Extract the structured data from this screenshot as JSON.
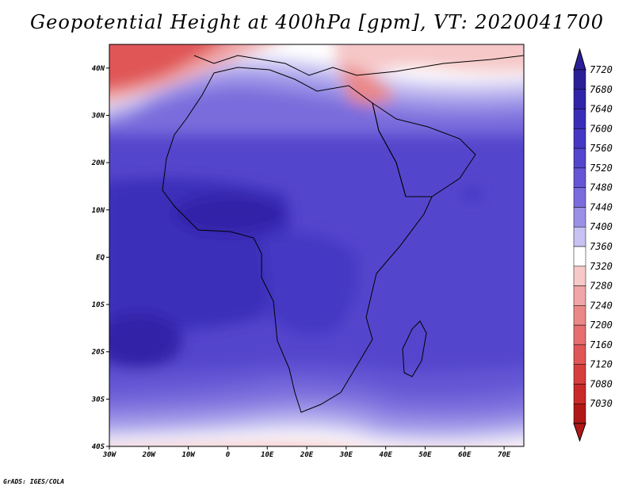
{
  "title": "Geopotential Height at 400hPa [gpm], VT: 2020041700",
  "credit": "GrADS: IGES/COLA",
  "map": {
    "lon_range": [
      -30,
      75
    ],
    "lat_range": [
      -40,
      45
    ],
    "lon_ticks": [
      {
        "value": -30,
        "label": "30W"
      },
      {
        "value": -20,
        "label": "20W"
      },
      {
        "value": -10,
        "label": "10W"
      },
      {
        "value": 0,
        "label": "0"
      },
      {
        "value": 10,
        "label": "10E"
      },
      {
        "value": 20,
        "label": "20E"
      },
      {
        "value": 30,
        "label": "30E"
      },
      {
        "value": 40,
        "label": "40E"
      },
      {
        "value": 50,
        "label": "50E"
      },
      {
        "value": 60,
        "label": "60E"
      },
      {
        "value": 70,
        "label": "70E"
      }
    ],
    "lat_ticks": [
      {
        "value": 40,
        "label": "40N"
      },
      {
        "value": 30,
        "label": "30N"
      },
      {
        "value": 20,
        "label": "20N"
      },
      {
        "value": 10,
        "label": "10N"
      },
      {
        "value": 0,
        "label": "EQ"
      },
      {
        "value": -10,
        "label": "10S"
      },
      {
        "value": -20,
        "label": "20S"
      },
      {
        "value": -30,
        "label": "30S"
      },
      {
        "value": -40,
        "label": "40S"
      }
    ]
  },
  "colorbar": {
    "levels": [
      {
        "label": "7720",
        "color": "#2b1f98"
      },
      {
        "label": "7680",
        "color": "#3024a8"
      },
      {
        "label": "7640",
        "color": "#3a2eb8"
      },
      {
        "label": "7600",
        "color": "#4538c4"
      },
      {
        "label": "7560",
        "color": "#5446cc"
      },
      {
        "label": "7520",
        "color": "#6456d4"
      },
      {
        "label": "7480",
        "color": "#7a6cdc"
      },
      {
        "label": "7440",
        "color": "#9a90e6"
      },
      {
        "label": "7400",
        "color": "#c8c2f2"
      },
      {
        "label": "7360",
        "color": "#ffffff"
      },
      {
        "label": "7320",
        "color": "#f6c8c8"
      },
      {
        "label": "7280",
        "color": "#f0a6a6"
      },
      {
        "label": "7240",
        "color": "#ea8888"
      },
      {
        "label": "7200",
        "color": "#e66e6e"
      },
      {
        "label": "7160",
        "color": "#e05656"
      },
      {
        "label": "7120",
        "color": "#d63e3e"
      },
      {
        "label": "7080",
        "color": "#c82a2a"
      },
      {
        "label": "7030",
        "color": "#b01818"
      }
    ]
  }
}
